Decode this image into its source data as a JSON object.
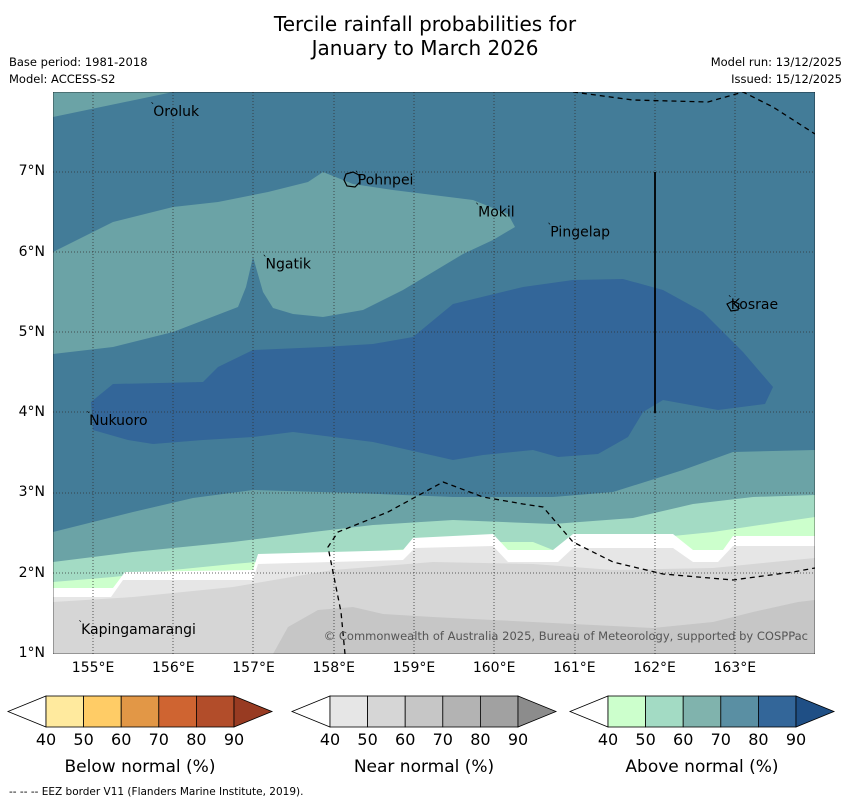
{
  "title": {
    "line1": "Tercile rainfall probabilities for",
    "line2": "January to March 2026"
  },
  "meta": {
    "base_period": "Base period: 1981-2018",
    "model": "Model: ACCESS-S2",
    "model_run": "Model run: 13/12/2025",
    "issued": "Issued: 15/12/2025"
  },
  "map": {
    "lon_ticks": [
      "155°E",
      "156°E",
      "157°E",
      "158°E",
      "159°E",
      "160°E",
      "161°E",
      "162°E",
      "163°E"
    ],
    "lat_ticks": [
      "7°N",
      "6°N",
      "5°N",
      "4°N",
      "3°N",
      "2°N",
      "1°N"
    ],
    "lon_values": [
      155,
      156,
      157,
      158,
      159,
      160,
      161,
      162,
      163
    ],
    "lat_values": [
      7,
      6,
      5,
      4,
      3,
      2,
      1
    ],
    "lon_range": [
      154.5,
      164
    ],
    "lat_range": [
      1,
      8
    ],
    "places": [
      {
        "name": "Oroluk",
        "lon": 155.75,
        "lat": 7.7
      },
      {
        "name": "Pohnpei",
        "lon": 158.3,
        "lat": 6.85
      },
      {
        "name": "Mokil",
        "lon": 159.8,
        "lat": 6.45
      },
      {
        "name": "Pingelap",
        "lon": 160.7,
        "lat": 6.2
      },
      {
        "name": "Ngatik",
        "lon": 157.15,
        "lat": 5.8
      },
      {
        "name": "Kosrae",
        "lon": 162.95,
        "lat": 5.3
      },
      {
        "name": "Nukuoro",
        "lon": 154.95,
        "lat": 3.85
      },
      {
        "name": "Kapingamarangi",
        "lon": 154.85,
        "lat": 1.25
      }
    ],
    "copyright": "© Commonwealth of Australia 2025, Bureau of Meteorology, supported by COSPPac",
    "colors": {
      "above_50": "#a3dbc4",
      "above_60": "#6ba3a6",
      "above_70": "#437c98",
      "above_80": "#336699",
      "near_40": "#e6e6e6",
      "near_50": "#d6d6d6",
      "near_60": "#c6c6c6",
      "green_40": "#ccffcc"
    }
  },
  "colorbars": [
    {
      "title": "Below normal (%)",
      "ticks": [
        "40",
        "50",
        "60",
        "70",
        "80",
        "90"
      ],
      "colors": [
        "#ffffff",
        "#ffea9e",
        "#ffcc66",
        "#e29746",
        "#cf6431",
        "#b24d2a",
        "#983b22"
      ]
    },
    {
      "title": "Near normal (%)",
      "ticks": [
        "40",
        "50",
        "60",
        "70",
        "80",
        "90"
      ],
      "colors": [
        "#ffffff",
        "#e6e6e6",
        "#d6d6d6",
        "#c6c6c6",
        "#b3b3b3",
        "#a1a1a1",
        "#8c8c8c"
      ]
    },
    {
      "title": "Above normal (%)",
      "ticks": [
        "40",
        "50",
        "60",
        "70",
        "80",
        "90"
      ],
      "colors": [
        "#ffffff",
        "#ccffcc",
        "#a3dbc4",
        "#80b3ad",
        "#5a8fa3",
        "#336699",
        "#1f4f85"
      ]
    }
  ],
  "footer": "--  --  -- EEZ border V11 (Flanders Marine Institute, 2019)."
}
